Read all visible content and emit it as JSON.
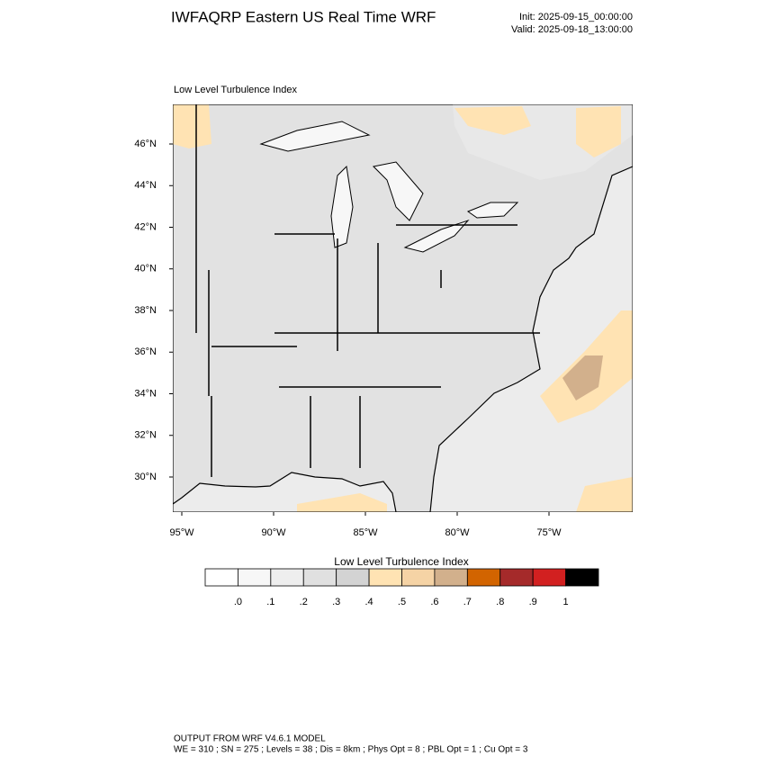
{
  "header": {
    "title": "IWFAQRP Eastern US Real Time WRF",
    "init": "Init: 2025-09-15_00:00:00",
    "valid": "Valid: 2025-09-18_13:00:00"
  },
  "map": {
    "subtitle": "Low Level Turbulence Index",
    "lat_labels": [
      "46°N",
      "44°N",
      "42°N",
      "40°N",
      "38°N",
      "36°N",
      "34°N",
      "32°N",
      "30°N"
    ],
    "lon_labels": [
      "95°W",
      "90°W",
      "85°W",
      "80°W",
      "75°W"
    ]
  },
  "colorbar": {
    "title": "Low Level Turbulence Index",
    "labels": [
      ".0",
      ".1",
      ".2",
      ".3",
      ".4",
      ".5",
      ".6",
      ".7",
      ".8",
      ".9",
      "1"
    ],
    "colors": [
      "#ffffff",
      "#f7f7f7",
      "#eeeeee",
      "#e0e0e0",
      "#d3d3d3",
      "#ffe3b3",
      "#f5d3a5",
      "#d2b08c",
      "#d26400",
      "#a52a2a",
      "#d22020",
      "#000000"
    ]
  },
  "footer": {
    "lines": [
      "OUTPUT FROM WRF V4.6.1 MODEL",
      "WE = 310 ; SN = 275 ; Levels = 38 ; Dis = 8km ; Phys Opt = 8 ; PBL Opt = 1 ; Cu Opt = 3"
    ]
  }
}
